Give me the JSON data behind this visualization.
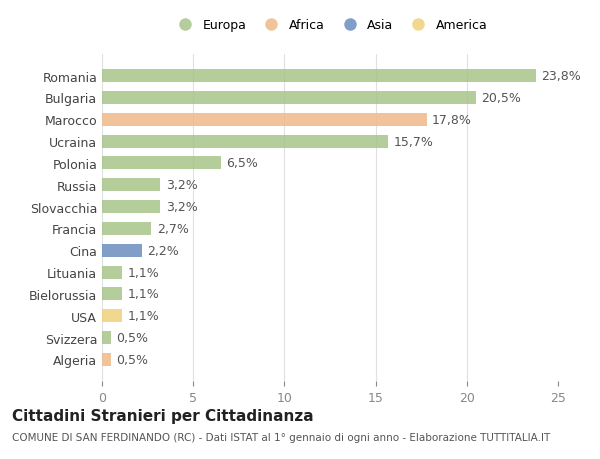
{
  "countries": [
    "Romania",
    "Bulgaria",
    "Marocco",
    "Ucraina",
    "Polonia",
    "Russia",
    "Slovacchia",
    "Francia",
    "Cina",
    "Lituania",
    "Bielorussia",
    "USA",
    "Svizzera",
    "Algeria"
  ],
  "values": [
    23.8,
    20.5,
    17.8,
    15.7,
    6.5,
    3.2,
    3.2,
    2.7,
    2.2,
    1.1,
    1.1,
    1.1,
    0.5,
    0.5
  ],
  "labels": [
    "23,8%",
    "20,5%",
    "17,8%",
    "15,7%",
    "6,5%",
    "3,2%",
    "3,2%",
    "2,7%",
    "2,2%",
    "1,1%",
    "1,1%",
    "1,1%",
    "0,5%",
    "0,5%"
  ],
  "continents": [
    "Europa",
    "Europa",
    "Africa",
    "Europa",
    "Europa",
    "Europa",
    "Europa",
    "Europa",
    "Asia",
    "Europa",
    "Europa",
    "America",
    "Europa",
    "Africa"
  ],
  "continent_colors": {
    "Europa": "#a8c38a",
    "Africa": "#f0b98a",
    "Asia": "#6b8dbf",
    "America": "#f0d07a"
  },
  "legend_order": [
    "Europa",
    "Africa",
    "Asia",
    "America"
  ],
  "title": "Cittadini Stranieri per Cittadinanza",
  "subtitle": "COMUNE DI SAN FERDINANDO (RC) - Dati ISTAT al 1° gennaio di ogni anno - Elaborazione TUTTITALIA.IT",
  "xlim": [
    0,
    25
  ],
  "xticks": [
    0,
    5,
    10,
    15,
    20,
    25
  ],
  "background_color": "#ffffff",
  "grid_color": "#e0e0e0",
  "bar_height": 0.6,
  "label_fontsize": 9,
  "title_fontsize": 11,
  "subtitle_fontsize": 7.5,
  "tick_fontsize": 9,
  "legend_fontsize": 9
}
